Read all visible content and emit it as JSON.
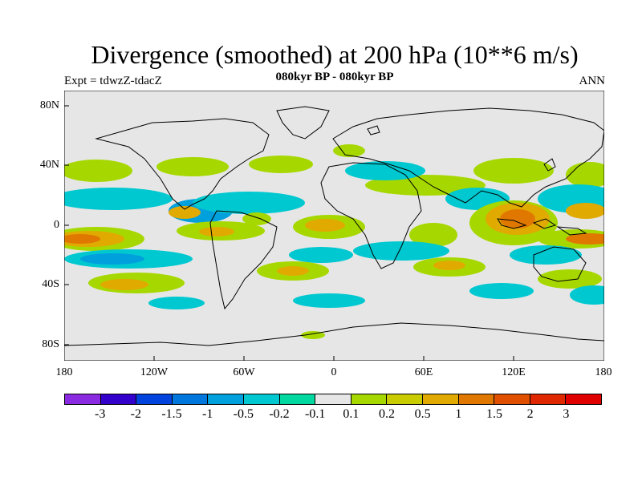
{
  "title": "Divergence (smoothed) at 200 hPa (10**6 m/s)",
  "subtitle": "080kyr BP - 080kyr BP",
  "expt": "Expt = tdwzZ-tdacZ",
  "period": "ANN",
  "lat_labels": [
    "80N",
    "40N",
    "0",
    "40S",
    "80S"
  ],
  "lon_labels": [
    "180",
    "120W",
    "60W",
    "0",
    "60E",
    "120E",
    "180"
  ],
  "colorbar": {
    "colors": [
      "#8a2be2",
      "#3300cc",
      "#0044dd",
      "#0077dd",
      "#00a0dd",
      "#00c8d0",
      "#00d8a0",
      "#e6e6e6",
      "#a6d800",
      "#c8cc00",
      "#e0aa00",
      "#e07800",
      "#e05000",
      "#e02800",
      "#e00000"
    ],
    "labels": [
      "-3",
      "-2",
      "-1.5",
      "-1",
      "-0.5",
      "-0.2",
      "-0.1",
      "0.1",
      "0.2",
      "0.5",
      "1",
      "1.5",
      "2",
      "3"
    ]
  },
  "map_colors": {
    "background": "#e6e6e6",
    "green_pos": "#a6d800",
    "yellow": "#c8cc00",
    "orange": "#e0aa00",
    "dark_orange": "#e07800",
    "cyan": "#00c8d0",
    "blue": "#00a0dd",
    "teal": "#00d8a0"
  }
}
